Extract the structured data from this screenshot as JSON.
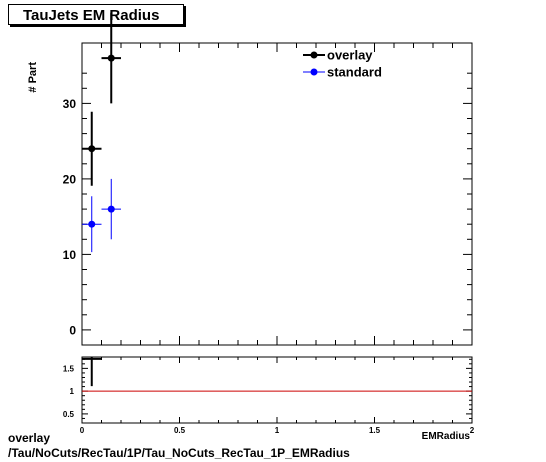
{
  "chart_data": [
    {
      "type": "scatter",
      "title": "TauJets EM Radius",
      "xlabel": "EMRadius",
      "ylabel": "# Part",
      "xlim": [
        0,
        2
      ],
      "ylim": [
        -2,
        38
      ],
      "yticks": [
        0,
        10,
        20,
        30
      ],
      "legend_position": "top-right",
      "series": [
        {
          "name": "overlay",
          "color": "#000000",
          "points": [
            {
              "x": 0.05,
              "y": 24,
              "xerr": 0.05,
              "yerr": 4.9
            },
            {
              "x": 0.15,
              "y": 36,
              "xerr": 0.05,
              "yerr": 6.0
            }
          ]
        },
        {
          "name": "standard",
          "color": "#0000ff",
          "points": [
            {
              "x": 0.05,
              "y": 14,
              "xerr": 0.05,
              "yerr": 3.7
            },
            {
              "x": 0.15,
              "y": 16,
              "xerr": 0.05,
              "yerr": 4.0
            }
          ]
        }
      ]
    },
    {
      "type": "scatter",
      "title": "",
      "xlabel": "EMRadius",
      "xlim": [
        0,
        2
      ],
      "ylim": [
        0.3,
        1.75
      ],
      "xticks": [
        0,
        0.5,
        1,
        1.5,
        2
      ],
      "xtick_labels": [
        "0",
        "0.5",
        "1",
        "1.5",
        "2"
      ],
      "yticks": [
        0.5,
        1,
        1.5
      ],
      "ytick_labels": [
        "0.5",
        "1",
        "1.5"
      ],
      "reference_line": {
        "y": 1,
        "color": "#cc0000"
      },
      "series": [
        {
          "name": "",
          "color": "#000000",
          "points": [
            {
              "x": 0.05,
              "y": 1.71,
              "xerr": 0.05,
              "yerr": 0.6
            }
          ]
        }
      ]
    }
  ],
  "footer": {
    "line1": "overlay",
    "line2": "/Tau/NoCuts/RecTau/1P/Tau_NoCuts_RecTau_1P_EMRadius"
  }
}
